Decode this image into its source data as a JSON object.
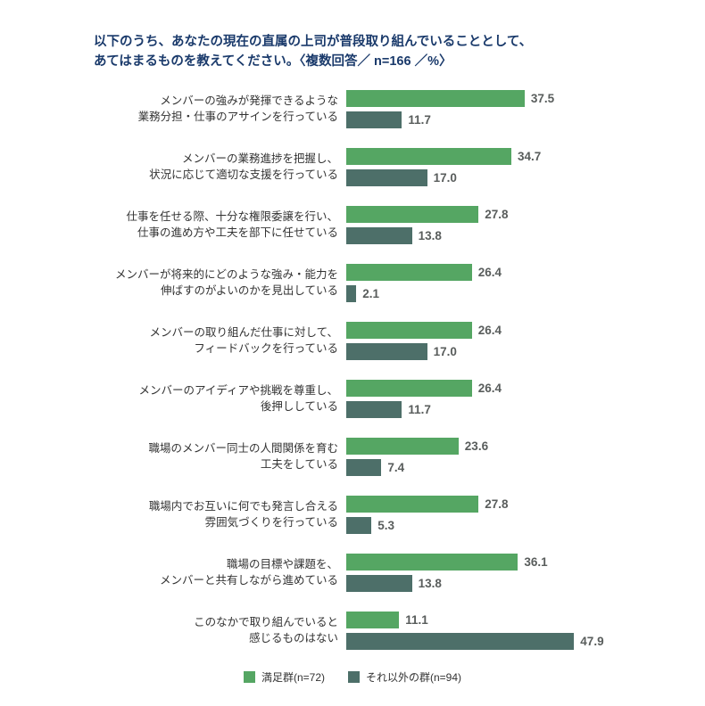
{
  "title": {
    "line1": "以下のうち、あなたの現在の直属の上司が普段取り組んでいることとして、",
    "line2": "あてはまるものを教えてください。〈複数回答／ n=166 ／%〉"
  },
  "chart_data": {
    "type": "bar",
    "orientation": "horizontal",
    "categories": [
      [
        "メンバーの強みが発揮できるような",
        "業務分担・仕事のアサインを行っている"
      ],
      [
        "メンバーの業務進捗を把握し、",
        "状況に応じて適切な支援を行っている"
      ],
      [
        "仕事を任せる際、十分な権限委譲を行い、",
        "仕事の進め方や工夫を部下に任せている"
      ],
      [
        "メンバーが将来的にどのような強み・能力を",
        "伸ばすのがよいのかを見出している"
      ],
      [
        "メンバーの取り組んだ仕事に対して、",
        "フィードバックを行っている"
      ],
      [
        "メンバーのアイディアや挑戦を尊重し、",
        "後押ししている"
      ],
      [
        "職場のメンバー同士の人間関係を育む",
        "工夫をしている"
      ],
      [
        "職場内でお互いに何でも発言し合える",
        "雰囲気づくりを行っている"
      ],
      [
        "職場の目標や課題を、",
        "メンバーと共有しながら進めている"
      ],
      [
        "このなかで取り組んでいると",
        "感じるものはない"
      ]
    ],
    "series": [
      {
        "key": "satisfied-group",
        "name": "満足群(n=72)",
        "color": "#55a663",
        "values": [
          37.5,
          34.7,
          27.8,
          26.4,
          26.4,
          26.4,
          23.6,
          27.8,
          36.1,
          11.1
        ]
      },
      {
        "key": "other-group",
        "name": "それ以外の群(n=94)",
        "color": "#4d6f69",
        "values": [
          11.7,
          17.0,
          13.8,
          2.1,
          17.0,
          11.7,
          7.4,
          5.3,
          13.8,
          47.9
        ]
      }
    ],
    "xlim": [
      0,
      50
    ],
    "value_labels": true,
    "grid": false,
    "legend_position": "bottom"
  },
  "legend": {
    "items": [
      {
        "label": "満足群(n=72)",
        "color": "#55a663"
      },
      {
        "label": "それ以外の群(n=94)",
        "color": "#4d6f69"
      }
    ]
  }
}
